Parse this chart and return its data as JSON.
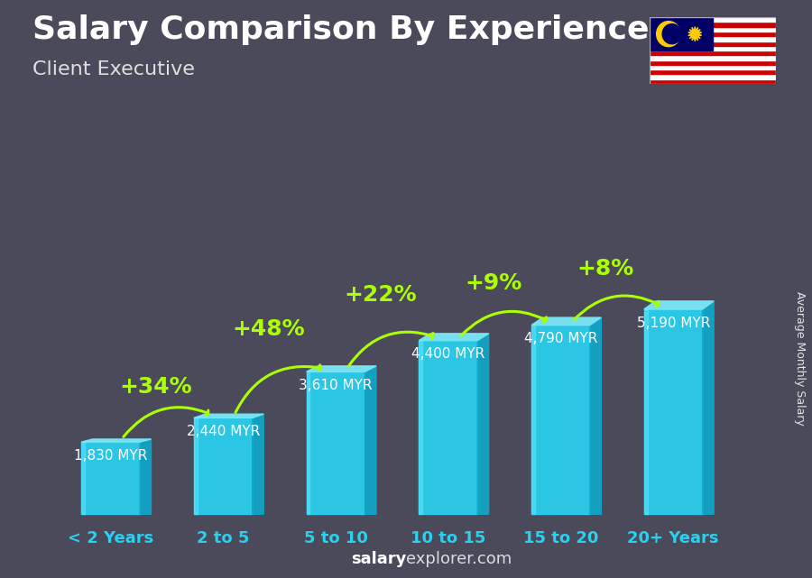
{
  "title": "Salary Comparison By Experience",
  "subtitle": "Client Executive",
  "ylabel": "Average Monthly Salary",
  "footer_bold": "salary",
  "footer_regular": "explorer.com",
  "categories": [
    "< 2 Years",
    "2 to 5",
    "5 to 10",
    "10 to 15",
    "15 to 20",
    "20+ Years"
  ],
  "values": [
    1830,
    2440,
    3610,
    4400,
    4790,
    5190
  ],
  "pct_changes": [
    "+34%",
    "+48%",
    "+22%",
    "+9%",
    "+8%"
  ],
  "value_labels": [
    "1,830 MYR",
    "2,440 MYR",
    "3,610 MYR",
    "4,400 MYR",
    "4,790 MYR",
    "5,190 MYR"
  ],
  "bar_face_color": "#29d0f0",
  "bar_top_color": "#7ae8f8",
  "bar_side_color": "#0ea8cc",
  "bg_color": "#4a4a5a",
  "title_color": "#ffffff",
  "subtitle_color": "#e0e0e0",
  "value_label_color": "#ffffff",
  "pct_color": "#aaff00",
  "arrow_color": "#aaff00",
  "footer_bold_color": "#ffffff",
  "footer_regular_color": "#dddddd",
  "ylabel_color": "#ffffff",
  "xticklabel_color": "#29d0f0",
  "title_fontsize": 26,
  "subtitle_fontsize": 16,
  "value_label_fontsize": 11,
  "pct_fontsize": 18,
  "xticklabel_fontsize": 13,
  "footer_fontsize": 13,
  "ylabel_fontsize": 9
}
